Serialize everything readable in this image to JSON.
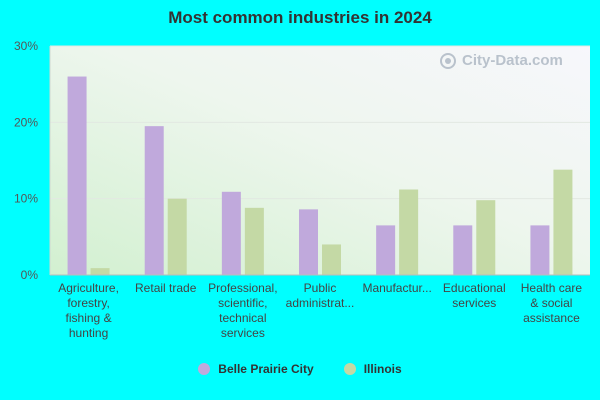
{
  "chart_data": {
    "type": "bar",
    "title": "Most common industries in 2024",
    "categories": [
      [
        "Agriculture,",
        "forestry,",
        "fishing &",
        "hunting"
      ],
      [
        "Retail trade"
      ],
      [
        "Professional,",
        "scientific,",
        "technical",
        "services"
      ],
      [
        "Public",
        "administrat..."
      ],
      [
        "Manufactur..."
      ],
      [
        "Educational",
        "services"
      ],
      [
        "Health care",
        "& social",
        "assistance"
      ]
    ],
    "series": [
      {
        "name": "Belle Prairie City",
        "color": "#c0a9dc",
        "values": [
          26.0,
          19.5,
          10.9,
          8.6,
          6.5,
          6.5,
          6.5
        ]
      },
      {
        "name": "Illinois",
        "color": "#c4d9a5",
        "values": [
          0.9,
          10.0,
          8.8,
          4.0,
          11.2,
          9.8,
          13.8
        ]
      }
    ],
    "ylim": [
      0,
      30
    ],
    "yticks": [
      0,
      10,
      20,
      30
    ],
    "ytick_labels": [
      "0%",
      "10%",
      "20%",
      "30%"
    ],
    "grid": true,
    "legend_position": "bottom-center"
  },
  "watermark": "City-Data.com"
}
